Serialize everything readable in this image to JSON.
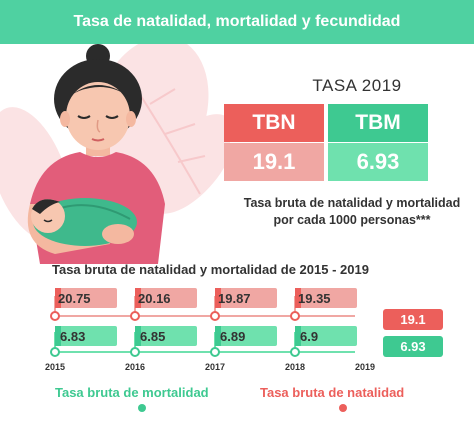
{
  "header": {
    "title": "Tasa de natalidad, mortalidad y fecundidad"
  },
  "kpi": {
    "title": "TASA 2019",
    "tbn": {
      "label": "TBN",
      "value": "19.1"
    },
    "tbm": {
      "label": "TBM",
      "value": "6.93"
    },
    "note_line1": "Tasa bruta de natalidad y mortalidad",
    "note_line2": "por cada 1000 personas***"
  },
  "timeline": {
    "title": "Tasa bruta de natalidad y mortalidad de  2015 - 2019",
    "years": [
      "2015",
      "2016",
      "2017",
      "2018",
      "2019"
    ],
    "natalidad": [
      "20.75",
      "20.16",
      "19.87",
      "19.35",
      "19.1"
    ],
    "mortalidad": [
      "6.83",
      "6.85",
      "6.89",
      "6.9",
      "6.93"
    ]
  },
  "legend": {
    "mortalidad": "Tasa bruta de mortalidad",
    "natalidad": "Tasa bruta de natalidad"
  },
  "colors": {
    "accent_green": "#4fd1a1",
    "red": "#ec5f5b",
    "red_light": "#f0a7a3",
    "green": "#3ec991",
    "green_light": "#6fe1ae"
  }
}
